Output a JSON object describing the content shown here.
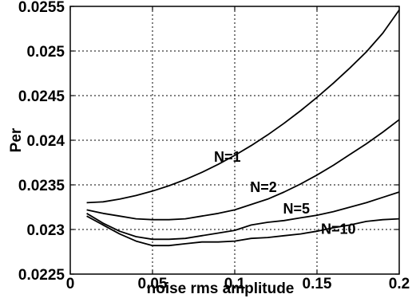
{
  "chart_data": {
    "type": "line",
    "xlabel": "noise rms amplitude",
    "ylabel": "Per",
    "xlim": [
      0,
      0.2
    ],
    "ylim": [
      0.0225,
      0.0255
    ],
    "x_ticks": [
      "0",
      "0.05",
      "0.1",
      "0.15",
      "0.2"
    ],
    "y_ticks": [
      "0.0225",
      "0.023",
      "0.0235",
      "0.024",
      "0.0245",
      "0.025",
      "0.0255"
    ],
    "grid": true,
    "series": [
      {
        "name": "N=1",
        "x": [
          0.01,
          0.02,
          0.03,
          0.04,
          0.05,
          0.06,
          0.07,
          0.08,
          0.09,
          0.1,
          0.11,
          0.12,
          0.13,
          0.14,
          0.15,
          0.16,
          0.17,
          0.18,
          0.19,
          0.2
        ],
        "y": [
          0.0233,
          0.02331,
          0.02334,
          0.02338,
          0.02343,
          0.02349,
          0.02356,
          0.02364,
          0.02373,
          0.02383,
          0.02394,
          0.02406,
          0.02419,
          0.02433,
          0.02448,
          0.02464,
          0.02481,
          0.02499,
          0.0252,
          0.02546
        ]
      },
      {
        "name": "N=2",
        "x": [
          0.01,
          0.02,
          0.03,
          0.04,
          0.05,
          0.06,
          0.07,
          0.08,
          0.09,
          0.1,
          0.11,
          0.12,
          0.13,
          0.14,
          0.15,
          0.16,
          0.17,
          0.18,
          0.19,
          0.2
        ],
        "y": [
          0.02322,
          0.02318,
          0.02315,
          0.02312,
          0.02311,
          0.02311,
          0.02312,
          0.02315,
          0.02318,
          0.02322,
          0.02328,
          0.02334,
          0.02342,
          0.02351,
          0.02361,
          0.02372,
          0.02384,
          0.02396,
          0.02409,
          0.02423
        ]
      },
      {
        "name": "N=5",
        "x": [
          0.01,
          0.02,
          0.03,
          0.04,
          0.05,
          0.06,
          0.07,
          0.08,
          0.09,
          0.1,
          0.11,
          0.12,
          0.13,
          0.14,
          0.15,
          0.16,
          0.17,
          0.18,
          0.19,
          0.2
        ],
        "y": [
          0.02318,
          0.02307,
          0.02298,
          0.02292,
          0.02289,
          0.02289,
          0.0229,
          0.02293,
          0.02296,
          0.02299,
          0.02305,
          0.02308,
          0.0231,
          0.02313,
          0.02316,
          0.0232,
          0.02325,
          0.0233,
          0.02336,
          0.02342
        ]
      },
      {
        "name": "N=10",
        "x": [
          0.01,
          0.02,
          0.03,
          0.04,
          0.05,
          0.06,
          0.07,
          0.08,
          0.09,
          0.1,
          0.11,
          0.12,
          0.13,
          0.14,
          0.15,
          0.16,
          0.17,
          0.18,
          0.19,
          0.2
        ],
        "y": [
          0.02315,
          0.02305,
          0.02295,
          0.02287,
          0.02282,
          0.02282,
          0.02284,
          0.02286,
          0.02286,
          0.02287,
          0.0229,
          0.02291,
          0.02293,
          0.02295,
          0.02298,
          0.02302,
          0.02305,
          0.02309,
          0.02311,
          0.02312
        ]
      }
    ],
    "label_positions": [
      {
        "text": "N=1",
        "x": 0.0955,
        "y": 0.02376
      },
      {
        "text": "N=2",
        "x": 0.1175,
        "y": 0.02342
      },
      {
        "text": "N=5",
        "x": 0.1375,
        "y": 0.02318
      },
      {
        "text": "N=10",
        "x": 0.163,
        "y": 0.02295
      }
    ],
    "colors": {
      "line": "#000000",
      "grid": "#000000",
      "background": "#ffffff"
    }
  }
}
